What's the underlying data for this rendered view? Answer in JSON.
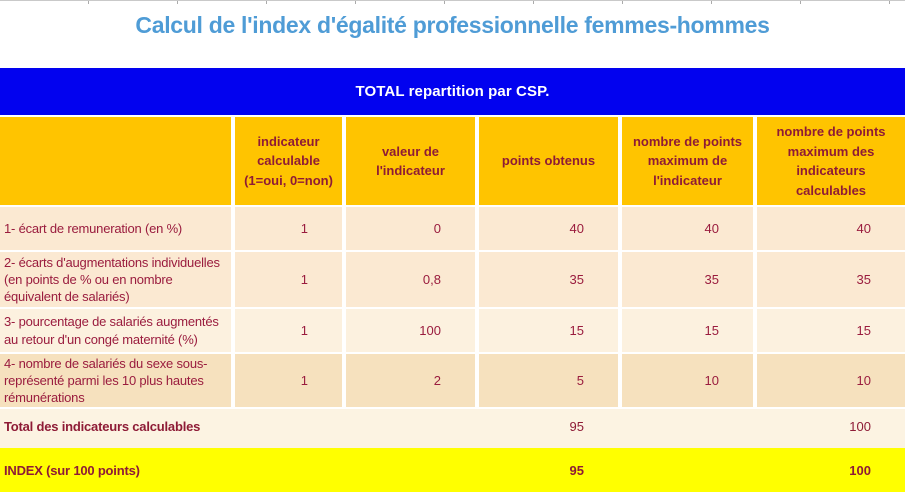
{
  "page": {
    "title": "Calcul de l'index d'égalité professionnelle femmes-hommes"
  },
  "banner": {
    "label": "TOTAL repartition par CSP."
  },
  "table": {
    "column_headers": [
      "",
      "indicateur calculable (1=oui, 0=non)",
      "valeur de l'indicateur",
      "points obtenus",
      "nombre de points maximum de l'indicateur",
      "nombre de points maximum des indicateurs calculables"
    ],
    "rows": [
      {
        "label": "1- écart de remuneration (en %)",
        "calculable": "1",
        "valeur": "0",
        "points": "40",
        "max_indicateur": "40",
        "max_calculables": "40"
      },
      {
        "label": "2- écarts d'augmentations individuelles (en points de % ou en nombre équivalent de salariés)",
        "calculable": "1",
        "valeur": "0,8",
        "points": "35",
        "max_indicateur": "35",
        "max_calculables": "35"
      },
      {
        "label": "3- pourcentage de salariés augmentés au retour d'un congé maternité (%)",
        "calculable": "1",
        "valeur": "100",
        "points": "15",
        "max_indicateur": "15",
        "max_calculables": "15"
      },
      {
        "label": "4- nombre de salariés du sexe sous-représenté parmi les 10 plus hautes rémunérations",
        "calculable": "1",
        "valeur": "2",
        "points": "5",
        "max_indicateur": "10",
        "max_calculables": "10"
      }
    ],
    "total_row": {
      "label": "Total des indicateurs calculables",
      "points": "95",
      "max_calculables": "100"
    },
    "index_row": {
      "label": "INDEX (sur 100 points)",
      "points": "95",
      "max_calculables": "100"
    }
  },
  "colors": {
    "title_blue": "#4F9CD6",
    "banner_blue": "#0202EF",
    "header_gold": "#FFC400",
    "text_maroon": "#8E1B36",
    "row_cream": "#FBE9D2",
    "row_cream_light": "#FCF1DF",
    "row_tan": "#F6E1BE",
    "total_band_cream": "#FCF3E2",
    "index_yellow": "#FFFF00"
  }
}
